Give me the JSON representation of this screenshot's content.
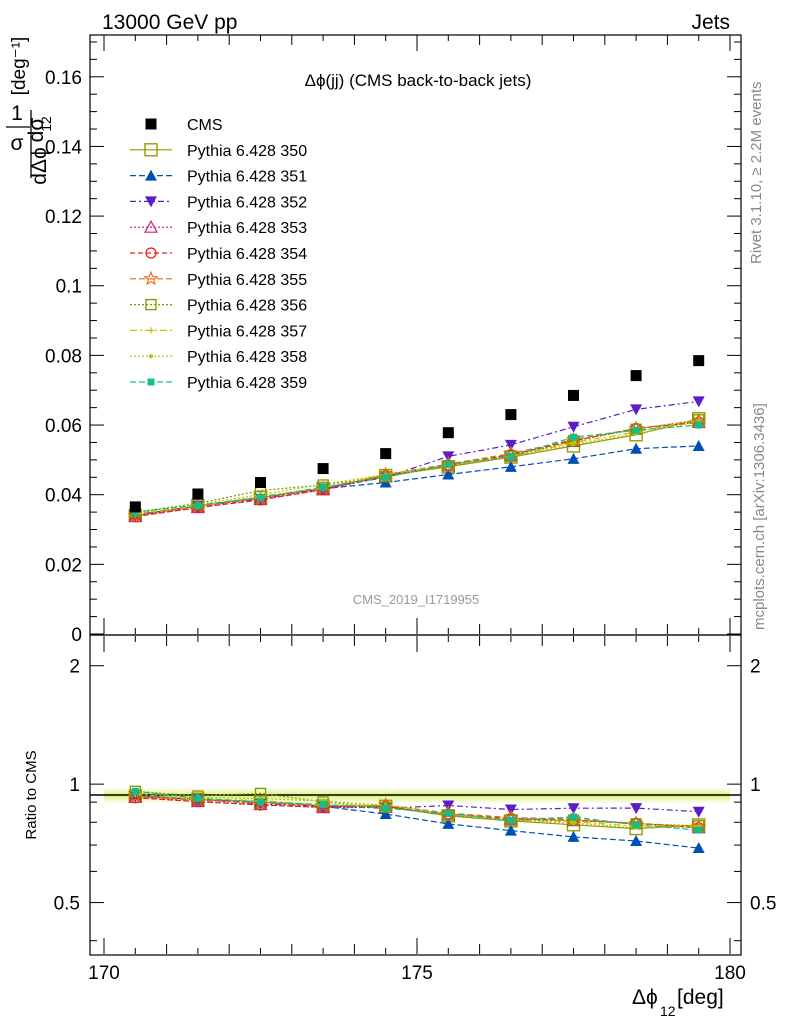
{
  "header": {
    "left": "13000 GeV pp",
    "right": "Jets"
  },
  "side_text": {
    "rivet": "Rivet 3.1.10, ≥ 2.2M events",
    "mcplots": "mcplots.cern.ch [arXiv:1306.3436]"
  },
  "watermark": "CMS_2019_I1719955",
  "chart_data": {
    "type": "line",
    "title": "Δϕ(jj) (CMS back-to-back jets)",
    "xlabel": "Δϕ",
    "xlabel_sub": "12",
    "xlabel_unit": " [deg]",
    "ylabel": "[deg⁻¹]",
    "ratio_ylabel": "Ratio to CMS",
    "xlim": [
      170,
      180
    ],
    "ylim": [
      0,
      0.172
    ],
    "ratio_ylim": [
      0.37,
      2.38
    ],
    "ratio_log": true,
    "x": [
      170.5,
      171.5,
      172.5,
      173.5,
      174.5,
      175.5,
      176.5,
      177.5,
      178.5,
      179.5
    ],
    "x_ticks": [
      "170",
      "175",
      "180"
    ],
    "y_ticks": [
      "0",
      "0.02",
      "0.04",
      "0.06",
      "0.08",
      "0.1",
      "0.12",
      "0.14",
      "0.16"
    ],
    "ratio_ticks": [
      "0.5",
      "1",
      "2"
    ],
    "legend_position": "top-left",
    "data": {
      "name": "CMS",
      "values": [
        0.0365,
        0.0402,
        0.0435,
        0.0475,
        0.0518,
        0.0578,
        0.063,
        0.0685,
        0.0742,
        0.0785
      ]
    },
    "series": [
      {
        "name": "Pythia 6.428 350",
        "color": "#999900",
        "marker": "open-square-large",
        "dash": "",
        "values": [
          0.034,
          0.0368,
          0.0392,
          0.0418,
          0.0455,
          0.048,
          0.0508,
          0.054,
          0.0572,
          0.0618
        ]
      },
      {
        "name": "Pythia 6.428 351",
        "color": "#0050b4",
        "marker": "filled-triangle-up",
        "dash": "6,3",
        "values": [
          0.0343,
          0.0366,
          0.0392,
          0.0417,
          0.0435,
          0.0458,
          0.048,
          0.0503,
          0.0532,
          0.054
        ]
      },
      {
        "name": "Pythia 6.428 352",
        "color": "#5a1ec8",
        "marker": "filled-triangle-down",
        "dash": "6,3,2,3",
        "values": [
          0.034,
          0.0368,
          0.0388,
          0.0418,
          0.045,
          0.051,
          0.0543,
          0.0595,
          0.0645,
          0.0668
        ]
      },
      {
        "name": "Pythia 6.428 353",
        "color": "#c81e78",
        "marker": "open-triangle-up",
        "dash": "2,2",
        "values": [
          0.0338,
          0.0363,
          0.0386,
          0.0414,
          0.0452,
          0.0483,
          0.0514,
          0.0553,
          0.059,
          0.0608
        ]
      },
      {
        "name": "Pythia 6.428 354",
        "color": "#e61e1e",
        "marker": "open-circle",
        "dash": "5,3",
        "values": [
          0.0337,
          0.0363,
          0.0385,
          0.0415,
          0.0455,
          0.0485,
          0.0515,
          0.0555,
          0.059,
          0.0608
        ]
      },
      {
        "name": "Pythia 6.428 355",
        "color": "#f06414",
        "marker": "open-star",
        "dash": "6,3",
        "values": [
          0.034,
          0.0366,
          0.039,
          0.0418,
          0.0458,
          0.0488,
          0.0518,
          0.0558,
          0.059,
          0.0612
        ]
      },
      {
        "name": "Pythia 6.428 356",
        "color": "#829600",
        "marker": "open-square",
        "dash": "2,2",
        "values": [
          0.035,
          0.0375,
          0.0412,
          0.0428,
          0.0452,
          0.0482,
          0.051,
          0.0555,
          0.0588,
          0.0615
        ]
      },
      {
        "name": "Pythia 6.428 357",
        "color": "#d2be00",
        "marker": "small-cross",
        "dash": "7,3,2,3",
        "values": [
          0.0344,
          0.0368,
          0.0395,
          0.042,
          0.0458,
          0.0485,
          0.051,
          0.055,
          0.058,
          0.0615
        ]
      },
      {
        "name": "Pythia 6.428 358",
        "color": "#aac800",
        "marker": "small-dot",
        "dash": "2,2",
        "values": [
          0.0347,
          0.0372,
          0.04,
          0.043,
          0.0458,
          0.0485,
          0.0512,
          0.0545,
          0.0575,
          0.061
        ]
      },
      {
        "name": "Pythia 6.428 359",
        "color": "#14be8c",
        "marker": "filled-square-small",
        "dash": "6,3",
        "values": [
          0.035,
          0.037,
          0.0392,
          0.0422,
          0.045,
          0.0487,
          0.051,
          0.0565,
          0.0585,
          0.06
        ]
      }
    ]
  }
}
